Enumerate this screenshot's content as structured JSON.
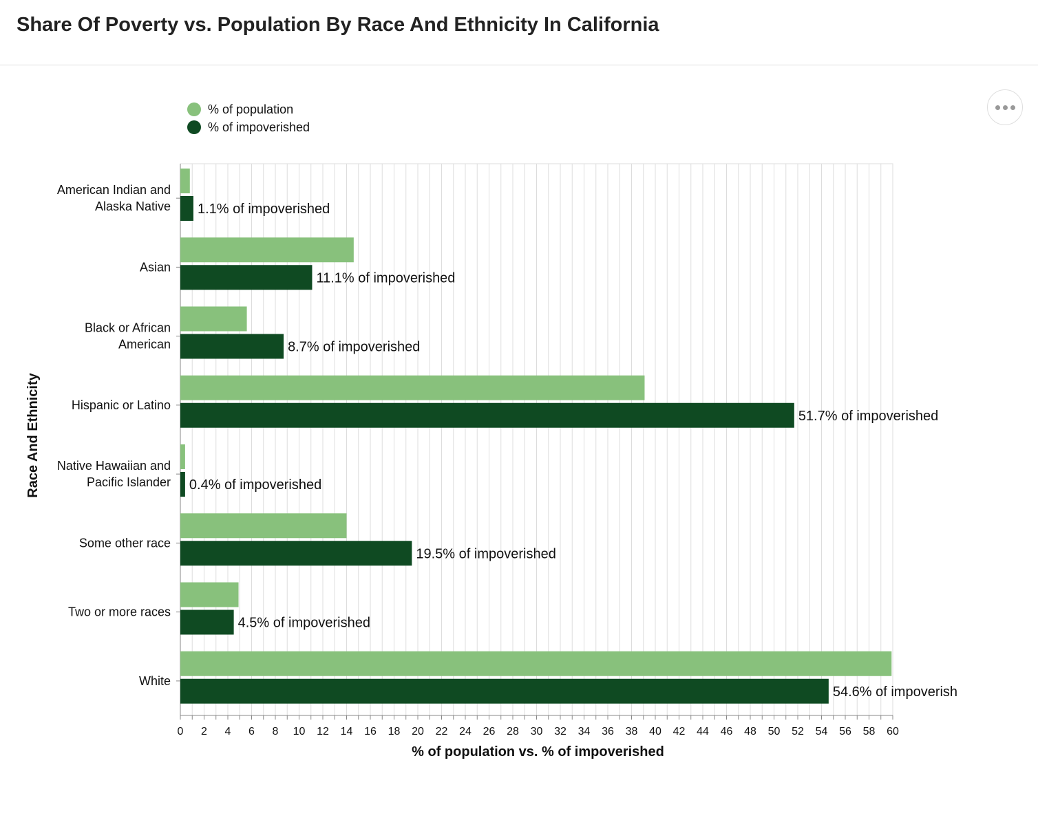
{
  "header": {
    "title": "Share Of Poverty vs. Population By Race And Ethnicity In California"
  },
  "menu": {
    "icon": "more-horizontal-icon"
  },
  "chart_data": {
    "type": "bar",
    "orientation": "horizontal",
    "title": "Share Of Poverty vs. Population By Race And Ethnicity In California",
    "xlabel": "% of population vs. % of impoverished",
    "ylabel": "Race And Ethnicity",
    "xlim": [
      0,
      60
    ],
    "x_ticks": [
      "0",
      "2",
      "4",
      "6",
      "8",
      "10",
      "12",
      "14",
      "16",
      "18",
      "20",
      "22",
      "24",
      "26",
      "28",
      "30",
      "32",
      "34",
      "36",
      "38",
      "40",
      "42",
      "44",
      "46",
      "48",
      "50",
      "52",
      "54",
      "56",
      "58",
      "60"
    ],
    "grid": true,
    "legend_position": "top-left",
    "categories": [
      [
        "American Indian and",
        "Alaska Native"
      ],
      [
        "Asian"
      ],
      [
        "Black or African",
        "American"
      ],
      [
        "Hispanic or Latino"
      ],
      [
        "Native Hawaiian and",
        "Pacific Islander"
      ],
      [
        "Some other race"
      ],
      [
        "Two or more races"
      ],
      [
        "White"
      ]
    ],
    "series": [
      {
        "name": "% of population",
        "color": "#88c17c",
        "values": [
          0.8,
          14.6,
          5.6,
          39.1,
          0.4,
          14.0,
          4.9,
          59.9
        ]
      },
      {
        "name": "% of impoverished",
        "color": "#0f4a22",
        "values": [
          1.1,
          11.1,
          8.7,
          51.7,
          0.4,
          19.5,
          4.5,
          54.6
        ],
        "labels": [
          "1.1% of impoverished",
          "11.1% of impoverished",
          "8.7% of impoverished",
          "51.7% of impoverished",
          "0.4% of impoverished",
          "19.5% of impoverished",
          "4.5% of impoverished",
          "54.6% of impoverish"
        ]
      }
    ]
  }
}
